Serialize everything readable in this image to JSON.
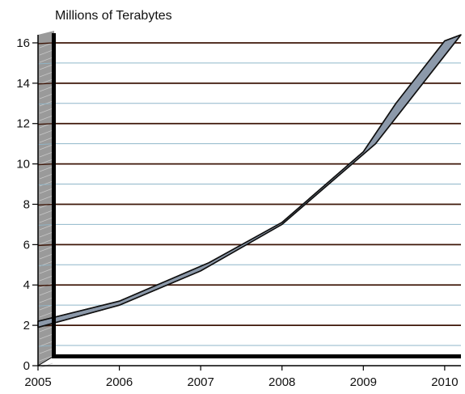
{
  "chart_data": {
    "type": "area",
    "unit_label": "Millions of Terabytes",
    "x_ticks": [
      "2005",
      "2006",
      "2007",
      "2008",
      "2009",
      "2010"
    ],
    "y_ticks": [
      "0",
      "2",
      "4",
      "6",
      "8",
      "10",
      "12",
      "14",
      "16"
    ],
    "xlim": [
      2005,
      2010.2
    ],
    "ylim": [
      0,
      16.4
    ],
    "grid": true,
    "colors": {
      "major_grid": "#3d1608",
      "minor_grid": "#8fb6c9",
      "band_fill": "#8c99aa",
      "band_edge": "#111111",
      "left_wall": "#9a9a9a",
      "axis": "#000000"
    },
    "series": [
      {
        "band": "upper",
        "x": [
          2005.0,
          2006.0,
          2007.1,
          2008.0,
          2009.0,
          2009.4,
          2010.0,
          2010.2
        ],
        "y": [
          2.2,
          3.2,
          5.1,
          7.1,
          10.6,
          13.0,
          16.1,
          16.4
        ]
      },
      {
        "band": "lower",
        "x": [
          2005.0,
          2006.0,
          2007.0,
          2008.0,
          2009.15,
          2010.2
        ],
        "y": [
          1.9,
          3.0,
          4.7,
          7.0,
          11.0,
          16.4
        ]
      }
    ]
  }
}
